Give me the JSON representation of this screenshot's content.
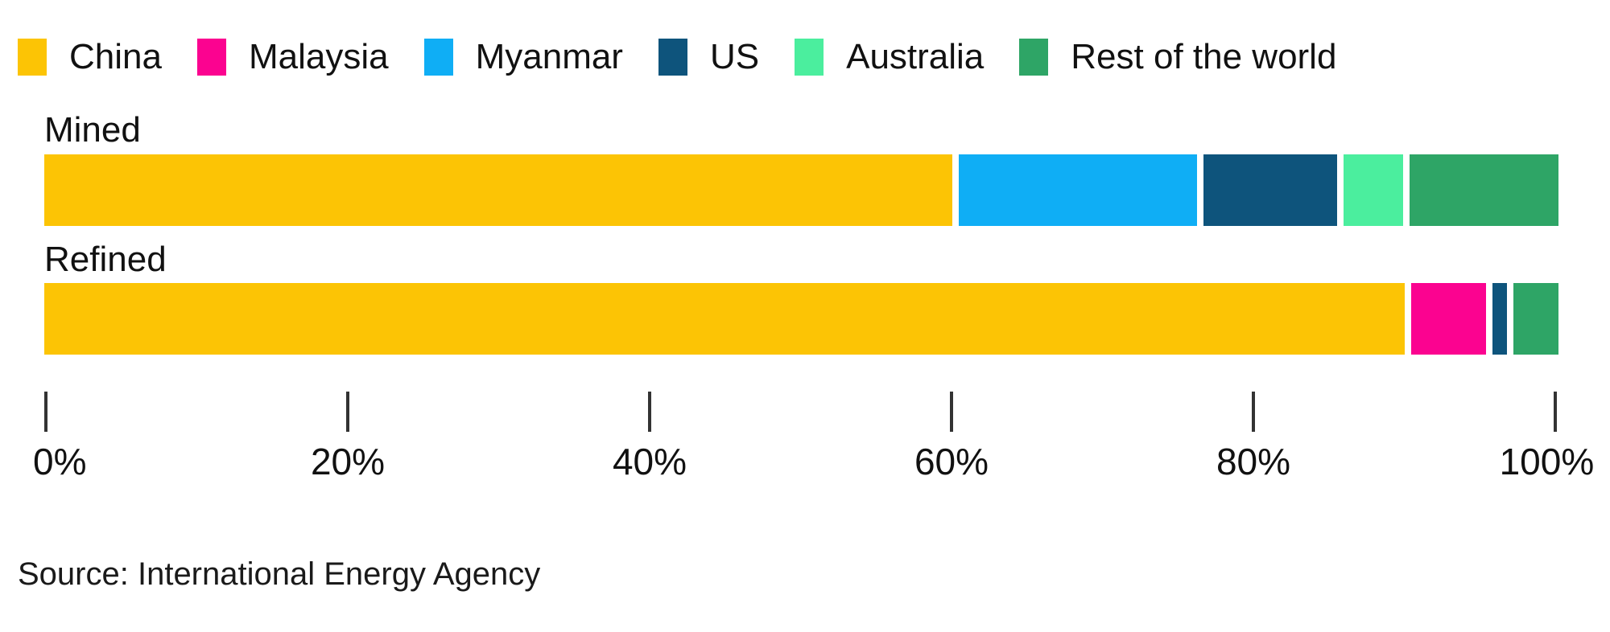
{
  "chart_data": {
    "type": "bar",
    "variant": "horizontal-stacked-100pct",
    "title": "",
    "categories": [
      "Mined",
      "Refined"
    ],
    "series": [
      {
        "name": "China",
        "color": "#FCC405",
        "values": [
          61,
          91
        ]
      },
      {
        "name": "Malaysia",
        "color": "#FB0390",
        "values": [
          0,
          5
        ]
      },
      {
        "name": "Myanmar",
        "color": "#0FAEF5",
        "values": [
          16,
          0
        ]
      },
      {
        "name": "US",
        "color": "#0E547C",
        "values": [
          9,
          1
        ]
      },
      {
        "name": "Australia",
        "color": "#4BEE9E",
        "values": [
          4,
          0
        ]
      },
      {
        "name": "Rest of the world",
        "color": "#2EA566",
        "values": [
          10,
          3
        ]
      }
    ],
    "x_axis": {
      "min": 0,
      "max": 100,
      "tick_values": [
        0,
        20,
        40,
        60,
        80,
        100
      ],
      "tick_labels": [
        "0%",
        "20%",
        "40%",
        "60%",
        "80%",
        "100%"
      ]
    },
    "legend_position": "top",
    "grid": false,
    "background": "#ffffff",
    "text_color": "#111111",
    "source": "Source: International Energy Agency"
  }
}
